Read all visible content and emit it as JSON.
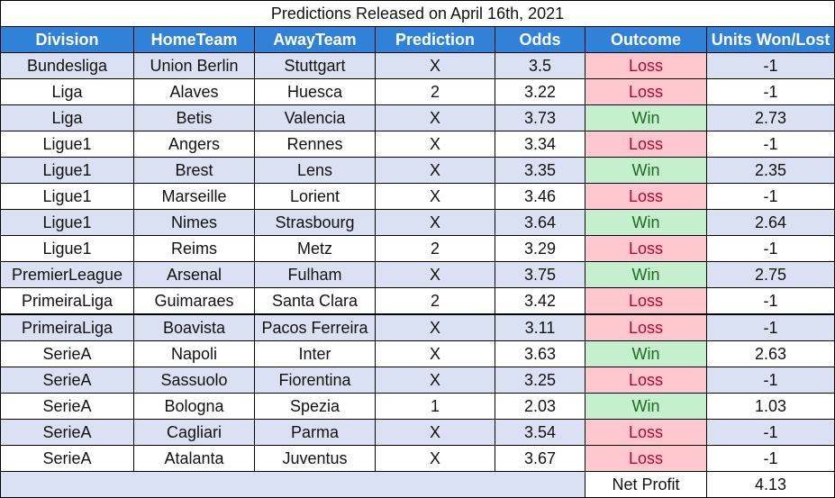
{
  "title": "Predictions Released on April 16th, 2021",
  "colors": {
    "header_bg": "#2f82d8",
    "band_bg": "#d9e1f2",
    "loss_bg": "#ffc7ce",
    "loss_text": "#c0002a",
    "win_bg": "#c6efce",
    "win_text": "#1e6b24"
  },
  "columns": [
    "Division",
    "HomeTeam",
    "AwayTeam",
    "Prediction",
    "Odds",
    "Outcome",
    "Units Won/Lost"
  ],
  "rows": [
    [
      "Bundesliga",
      "Union Berlin",
      "Stuttgart",
      "X",
      "3.5",
      "Loss",
      "-1"
    ],
    [
      "Liga",
      "Alaves",
      "Huesca",
      "2",
      "3.22",
      "Loss",
      "-1"
    ],
    [
      "Liga",
      "Betis",
      "Valencia",
      "X",
      "3.73",
      "Win",
      "2.73"
    ],
    [
      "Ligue1",
      "Angers",
      "Rennes",
      "X",
      "3.34",
      "Loss",
      "-1"
    ],
    [
      "Ligue1",
      "Brest",
      "Lens",
      "X",
      "3.35",
      "Win",
      "2.35"
    ],
    [
      "Ligue1",
      "Marseille",
      "Lorient",
      "X",
      "3.46",
      "Loss",
      "-1"
    ],
    [
      "Ligue1",
      "Nimes",
      "Strasbourg",
      "X",
      "3.64",
      "Win",
      "2.64"
    ],
    [
      "Ligue1",
      "Reims",
      "Metz",
      "2",
      "3.29",
      "Loss",
      "-1"
    ],
    [
      "PremierLeague",
      "Arsenal",
      "Fulham",
      "X",
      "3.75",
      "Win",
      "2.75"
    ],
    [
      "PrimeiraLiga",
      "Guimaraes",
      "Santa Clara",
      "2",
      "3.42",
      "Loss",
      "-1"
    ],
    [
      "PrimeiraLiga",
      "Boavista",
      "Pacos Ferreira",
      "X",
      "3.11",
      "Loss",
      "-1"
    ],
    [
      "SerieA",
      "Napoli",
      "Inter",
      "X",
      "3.63",
      "Win",
      "2.63"
    ],
    [
      "SerieA",
      "Sassuolo",
      "Fiorentina",
      "X",
      "3.25",
      "Loss",
      "-1"
    ],
    [
      "SerieA",
      "Bologna",
      "Spezia",
      "1",
      "2.03",
      "Win",
      "1.03"
    ],
    [
      "SerieA",
      "Cagliari",
      "Parma",
      "X",
      "3.54",
      "Loss",
      "-1"
    ],
    [
      "SerieA",
      "Atalanta",
      "Juventus",
      "X",
      "3.67",
      "Loss",
      "-1"
    ]
  ],
  "footer": {
    "label": "Net Profit",
    "value": "4.13"
  }
}
